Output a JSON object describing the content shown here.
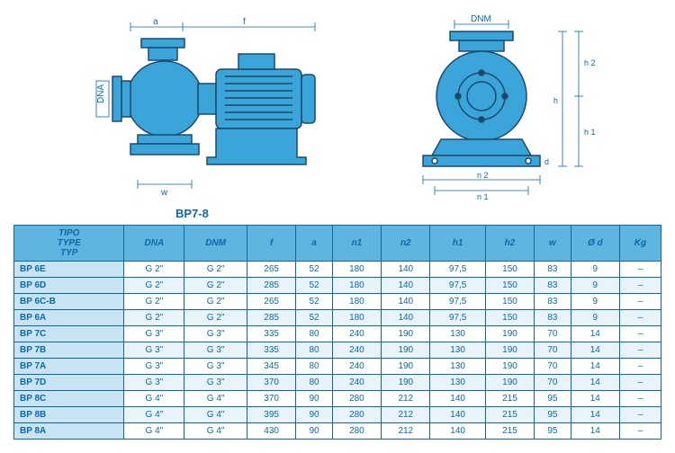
{
  "diagram": {
    "model_label": "BP7-8",
    "labels": {
      "a": "a",
      "f": "f",
      "dna": "DNA",
      "dnm": "DNM",
      "w": "w",
      "h1": "h 1",
      "h2": "h 2",
      "h": "h",
      "d": "d",
      "n1": "n 1",
      "n2": "n 2"
    },
    "colors": {
      "body": "#3ba5d9",
      "outline": "#1a4a6e",
      "dimension": "#0a6aa8"
    }
  },
  "table": {
    "columns": [
      "TIPO\nTYPE\nTYP",
      "DNA",
      "DNM",
      "f",
      "a",
      "n1",
      "n2",
      "h1",
      "h2",
      "w",
      "Ø d",
      "Kg"
    ],
    "rows": [
      [
        "BP 6E",
        "G 2\"",
        "G 2\"",
        "265",
        "52",
        "180",
        "140",
        "97,5",
        "150",
        "83",
        "9",
        "–"
      ],
      [
        "BP 6D",
        "G 2\"",
        "G 2\"",
        "285",
        "52",
        "180",
        "140",
        "97,5",
        "150",
        "83",
        "9",
        "–"
      ],
      [
        "BP 6C-B",
        "G 2\"",
        "G 2\"",
        "265",
        "52",
        "180",
        "140",
        "97,5",
        "150",
        "83",
        "9",
        "–"
      ],
      [
        "BP 6A",
        "G 2\"",
        "G 2\"",
        "285",
        "52",
        "180",
        "140",
        "97,5",
        "150",
        "83",
        "9",
        "–"
      ],
      [
        "BP 7C",
        "G 3\"",
        "G 3\"",
        "335",
        "80",
        "240",
        "190",
        "130",
        "190",
        "70",
        "14",
        "–"
      ],
      [
        "BP 7B",
        "G 3\"",
        "G 3\"",
        "335",
        "80",
        "240",
        "190",
        "130",
        "190",
        "70",
        "14",
        "–"
      ],
      [
        "BP 7A",
        "G 3\"",
        "G 3\"",
        "345",
        "80",
        "240",
        "190",
        "130",
        "190",
        "70",
        "14",
        "–"
      ],
      [
        "BP 7D",
        "G 3\"",
        "G 3\"",
        "370",
        "80",
        "240",
        "190",
        "130",
        "190",
        "70",
        "14",
        "–"
      ],
      [
        "BP 8C",
        "G 4\"",
        "G 4\"",
        "370",
        "90",
        "280",
        "212",
        "140",
        "215",
        "95",
        "14",
        "–"
      ],
      [
        "BP 8B",
        "G 4\"",
        "G 4\"",
        "395",
        "90",
        "280",
        "212",
        "140",
        "215",
        "95",
        "14",
        "–"
      ],
      [
        "BP 8A",
        "G 4\"",
        "G 4\"",
        "430",
        "90",
        "280",
        "212",
        "140",
        "215",
        "95",
        "14",
        "–"
      ]
    ]
  }
}
